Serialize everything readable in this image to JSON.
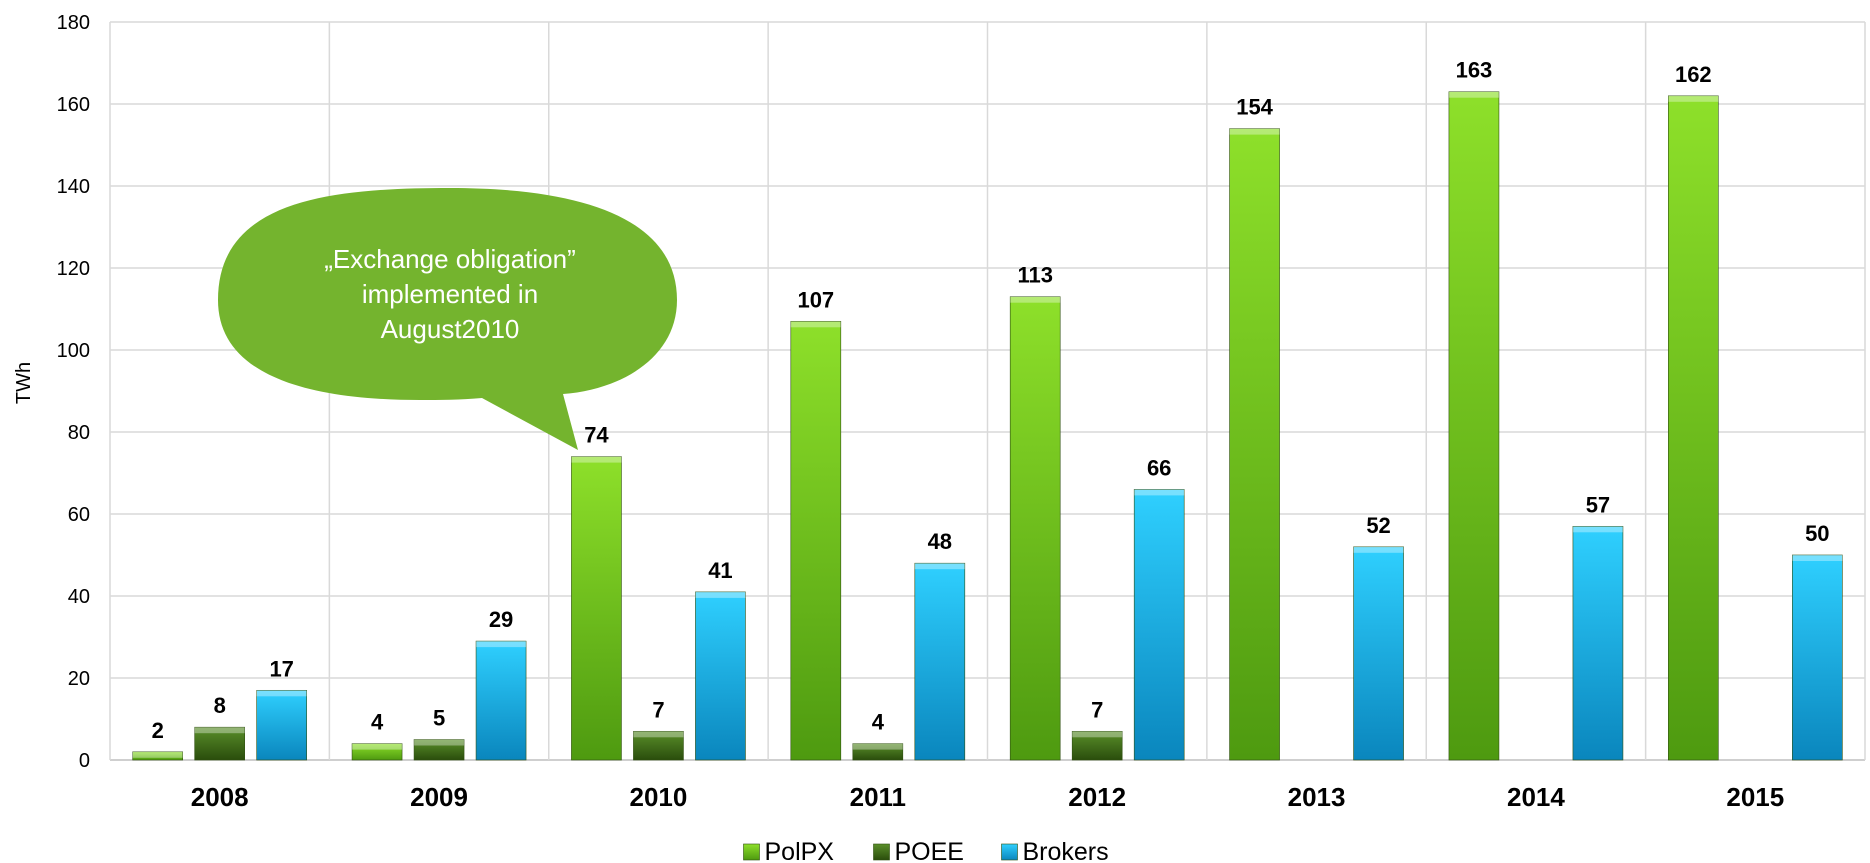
{
  "chart_data": {
    "type": "bar",
    "ylabel": "TWh",
    "ylim": [
      0,
      180
    ],
    "yticks": [
      "0",
      "20",
      "40",
      "60",
      "80",
      "100",
      "120",
      "140",
      "160",
      "180"
    ],
    "categories": [
      "2008",
      "2009",
      "2010",
      "2011",
      "2012",
      "2013",
      "2014",
      "2015"
    ],
    "series": [
      {
        "name": "PolPX",
        "color": "#6fc41a",
        "values": [
          2,
          4,
          74,
          107,
          113,
          154,
          163,
          162
        ]
      },
      {
        "name": "POEE",
        "color": "#3d6b17",
        "values": [
          8,
          5,
          7,
          4,
          7,
          null,
          null,
          null
        ]
      },
      {
        "name": "Brokers",
        "color": "#14b3e6",
        "values": [
          17,
          29,
          41,
          48,
          66,
          52,
          57,
          50
        ]
      }
    ],
    "grid": true,
    "legend_position": "bottom-center",
    "annotation": {
      "lines": [
        "„Exchange obligation”",
        "implemented in",
        "August2010"
      ],
      "color": "#74b42e"
    }
  }
}
